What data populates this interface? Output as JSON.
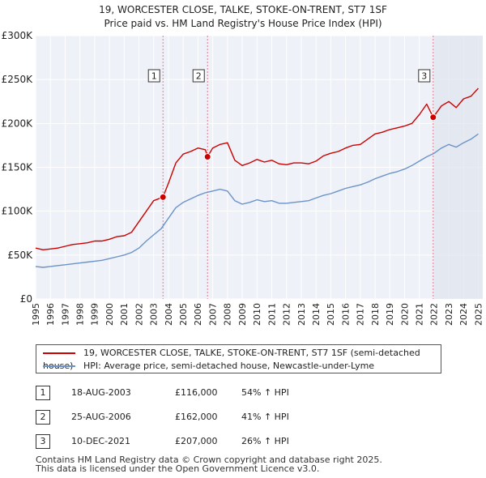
{
  "chart_data": {
    "type": "line",
    "title": "19, WORCESTER CLOSE, TALKE, STOKE-ON-TRENT, ST7 1SF",
    "subtitle": "Price paid vs. HM Land Registry's House Price Index (HPI)",
    "xlabel": "",
    "ylabel": "",
    "xlim": [
      1995,
      2025.3
    ],
    "ylim": [
      0,
      300000
    ],
    "y_ticks": [
      0,
      50000,
      100000,
      150000,
      200000,
      250000,
      300000
    ],
    "y_tick_labels": [
      "£0",
      "£50K",
      "£100K",
      "£150K",
      "£200K",
      "£250K",
      "£300K"
    ],
    "x_ticks": [
      1995,
      1996,
      1997,
      1998,
      1999,
      2000,
      2001,
      2002,
      2003,
      2004,
      2005,
      2006,
      2007,
      2008,
      2009,
      2010,
      2011,
      2012,
      2013,
      2014,
      2015,
      2016,
      2017,
      2018,
      2019,
      2020,
      2021,
      2022,
      2023,
      2024,
      2025
    ],
    "x_tick_labels": [
      "1995",
      "1996",
      "1997",
      "1998",
      "1999",
      "2000",
      "2001",
      "2002",
      "2003",
      "2004",
      "2005",
      "2006",
      "2007",
      "2008",
      "2009",
      "2010",
      "2011",
      "2012",
      "2013",
      "2014",
      "2015",
      "2016",
      "2017",
      "2018",
      "2019",
      "2020",
      "2021",
      "2022",
      "2023",
      "2024",
      "2025"
    ],
    "grid": true,
    "series": [
      {
        "name": "19, WORCESTER CLOSE, TALKE, STOKE-ON-TRENT, ST7 1SF (semi-detached house)",
        "color": "#cc0000",
        "x": [
          1995.0,
          1995.5,
          1996.0,
          1996.5,
          1997.0,
          1997.5,
          1998.0,
          1998.5,
          1999.0,
          1999.5,
          2000.0,
          2000.5,
          2001.0,
          2001.5,
          2002.0,
          2002.5,
          2003.0,
          2003.63,
          2004.0,
          2004.5,
          2005.0,
          2005.5,
          2006.0,
          2006.5,
          2006.65,
          2007.0,
          2007.5,
          2008.0,
          2008.5,
          2009.0,
          2009.5,
          2010.0,
          2010.5,
          2011.0,
          2011.5,
          2012.0,
          2012.5,
          2013.0,
          2013.5,
          2014.0,
          2014.5,
          2015.0,
          2015.5,
          2016.0,
          2016.5,
          2017.0,
          2017.5,
          2018.0,
          2018.5,
          2019.0,
          2019.5,
          2020.0,
          2020.5,
          2021.0,
          2021.5,
          2021.94,
          2022.5,
          2023.0,
          2023.5,
          2024.0,
          2024.5,
          2025.0
        ],
        "values": [
          58000,
          56000,
          57000,
          58000,
          60000,
          62000,
          63000,
          64000,
          66000,
          66000,
          68000,
          71000,
          72000,
          76000,
          88000,
          100000,
          112000,
          116000,
          132000,
          155000,
          165000,
          168000,
          172000,
          170000,
          162000,
          172000,
          176000,
          178000,
          158000,
          152000,
          155000,
          159000,
          156000,
          158000,
          154000,
          153000,
          155000,
          155000,
          154000,
          157000,
          163000,
          166000,
          168000,
          172000,
          175000,
          176000,
          182000,
          188000,
          190000,
          193000,
          195000,
          197000,
          200000,
          210000,
          222000,
          207000,
          220000,
          225000,
          218000,
          228000,
          231000,
          240000
        ]
      },
      {
        "name": "HPI: Average price, semi-detached house, Newcastle-under-Lyme",
        "color": "#6b93c9",
        "x": [
          1995.0,
          1995.5,
          1996.0,
          1996.5,
          1997.0,
          1997.5,
          1998.0,
          1998.5,
          1999.0,
          1999.5,
          2000.0,
          2000.5,
          2001.0,
          2001.5,
          2002.0,
          2002.5,
          2003.0,
          2003.5,
          2004.0,
          2004.5,
          2005.0,
          2005.5,
          2006.0,
          2006.5,
          2007.0,
          2007.5,
          2008.0,
          2008.5,
          2009.0,
          2009.5,
          2010.0,
          2010.5,
          2011.0,
          2011.5,
          2012.0,
          2012.5,
          2013.0,
          2013.5,
          2014.0,
          2014.5,
          2015.0,
          2015.5,
          2016.0,
          2016.5,
          2017.0,
          2017.5,
          2018.0,
          2018.5,
          2019.0,
          2019.5,
          2020.0,
          2020.5,
          2021.0,
          2021.5,
          2022.0,
          2022.5,
          2023.0,
          2023.5,
          2024.0,
          2024.5,
          2025.0
        ],
        "values": [
          37000,
          36000,
          37000,
          38000,
          39000,
          40000,
          41000,
          42000,
          43000,
          44000,
          46000,
          48000,
          50000,
          53000,
          58000,
          66000,
          73000,
          80000,
          92000,
          104000,
          110000,
          114000,
          118000,
          121000,
          123000,
          125000,
          123000,
          112000,
          108000,
          110000,
          113000,
          111000,
          112000,
          109000,
          109000,
          110000,
          111000,
          112000,
          115000,
          118000,
          120000,
          123000,
          126000,
          128000,
          130000,
          133000,
          137000,
          140000,
          143000,
          145000,
          148000,
          152000,
          157000,
          162000,
          166000,
          172000,
          176000,
          173000,
          178000,
          182000,
          188000
        ]
      }
    ],
    "markers": [
      {
        "label": "1",
        "x": 2003.63,
        "value": 116000
      },
      {
        "label": "2",
        "x": 2006.65,
        "value": 162000
      },
      {
        "label": "3",
        "x": 2021.94,
        "value": 207000
      }
    ]
  },
  "legend": {
    "items": [
      {
        "label": "19, WORCESTER CLOSE, TALKE, STOKE-ON-TRENT, ST7 1SF (semi-detached house)",
        "color": "#cc0000"
      },
      {
        "label": "HPI: Average price, semi-detached house, Newcastle-under-Lyme",
        "color": "#6b93c9"
      }
    ]
  },
  "sales": [
    {
      "num": "1",
      "date": "18-AUG-2003",
      "price": "£116,000",
      "hpi": "54% ↑ HPI"
    },
    {
      "num": "2",
      "date": "25-AUG-2006",
      "price": "£162,000",
      "hpi": "41% ↑ HPI"
    },
    {
      "num": "3",
      "date": "10-DEC-2021",
      "price": "£207,000",
      "hpi": "26% ↑ HPI"
    }
  ],
  "footer": {
    "line1": "Contains HM Land Registry data © Crown copyright and database right 2025.",
    "line2": "This data is licensed under the Open Government Licence v3.0."
  }
}
